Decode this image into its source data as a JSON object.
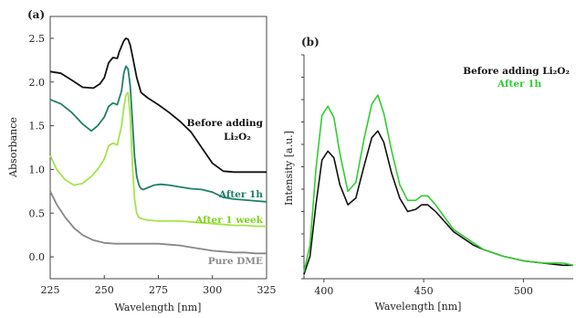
{
  "chart_data": [
    {
      "type": "line",
      "panel_label": "(a)",
      "xlabel": "Wavelength [nm]",
      "ylabel": "Absorbance",
      "xlim": [
        225,
        325
      ],
      "ylim": [
        -0.25,
        2.75
      ],
      "xticks": [
        225,
        250,
        275,
        300,
        325
      ],
      "yticks": [
        0.0,
        0.5,
        1.0,
        1.5,
        2.0,
        2.5
      ],
      "ytick_labels": [
        "0.0",
        "0.5",
        "1.0",
        "1.5",
        "2.0",
        "2.5"
      ],
      "series": [
        {
          "name": "Before adding Li₂O₂",
          "color": "#111111",
          "label_color": "#111111",
          "x": [
            225,
            230,
            235,
            240,
            245,
            248,
            250,
            252,
            254,
            256,
            257,
            259,
            260,
            261,
            262,
            263,
            265,
            267,
            270,
            275,
            280,
            285,
            290,
            295,
            300,
            305,
            310,
            315,
            320,
            325
          ],
          "y": [
            2.12,
            2.1,
            2.02,
            1.94,
            1.93,
            1.98,
            2.05,
            2.22,
            2.28,
            2.27,
            2.35,
            2.47,
            2.5,
            2.49,
            2.42,
            2.3,
            2.05,
            1.88,
            1.82,
            1.74,
            1.65,
            1.55,
            1.43,
            1.25,
            1.07,
            0.98,
            0.97,
            0.97,
            0.97,
            0.97
          ]
        },
        {
          "name": "After 1h",
          "color": "#1f7f68",
          "label_color": "#1f7f68",
          "x": [
            225,
            230,
            235,
            240,
            244,
            247,
            250,
            252,
            254,
            256,
            258,
            259,
            260,
            261,
            262,
            263,
            264,
            265,
            266,
            267,
            268,
            270,
            273,
            276,
            280,
            285,
            290,
            295,
            300,
            305,
            310,
            315,
            320,
            325
          ],
          "y": [
            1.8,
            1.75,
            1.65,
            1.52,
            1.44,
            1.5,
            1.6,
            1.72,
            1.76,
            1.74,
            1.9,
            2.1,
            2.18,
            2.15,
            1.95,
            1.55,
            1.15,
            0.92,
            0.82,
            0.78,
            0.77,
            0.79,
            0.82,
            0.83,
            0.82,
            0.8,
            0.78,
            0.77,
            0.74,
            0.68,
            0.66,
            0.65,
            0.64,
            0.63
          ]
        },
        {
          "name": "After 1 week",
          "color": "#a6e34a",
          "label_color": "#7ed321",
          "x": [
            225,
            228,
            232,
            236,
            240,
            244,
            247,
            250,
            252,
            254,
            256,
            258,
            259,
            260,
            261,
            262,
            263,
            264,
            265,
            266,
            268,
            270,
            275,
            280,
            285,
            290,
            295,
            300,
            305,
            310,
            315,
            320,
            325
          ],
          "y": [
            1.16,
            1.0,
            0.88,
            0.82,
            0.84,
            0.92,
            1.0,
            1.12,
            1.27,
            1.3,
            1.28,
            1.5,
            1.7,
            1.85,
            1.88,
            1.6,
            1.05,
            0.66,
            0.5,
            0.45,
            0.43,
            0.42,
            0.41,
            0.41,
            0.41,
            0.4,
            0.39,
            0.38,
            0.37,
            0.36,
            0.36,
            0.35,
            0.35
          ]
        },
        {
          "name": "Pure DME",
          "color": "#888888",
          "label_color": "#8a8a8a",
          "x": [
            225,
            228,
            232,
            236,
            240,
            245,
            250,
            255,
            260,
            265,
            270,
            275,
            280,
            285,
            290,
            295,
            300,
            305,
            310,
            315,
            320,
            325
          ],
          "y": [
            0.75,
            0.6,
            0.45,
            0.33,
            0.25,
            0.19,
            0.16,
            0.15,
            0.15,
            0.15,
            0.15,
            0.15,
            0.14,
            0.13,
            0.11,
            0.09,
            0.07,
            0.06,
            0.05,
            0.05,
            0.04,
            0.04
          ]
        }
      ],
      "annotations": [
        {
          "text": "Before adding",
          "color": "#111111"
        },
        {
          "text": "Li₂O₂",
          "color": "#111111"
        },
        {
          "text": "After 1h",
          "color": "#1f7f68"
        },
        {
          "text": "After 1 week",
          "color": "#7ed321"
        },
        {
          "text": "Pure DME",
          "color": "#8a8a8a"
        }
      ]
    },
    {
      "type": "line",
      "panel_label": "(b)",
      "xlabel": "Wavelength [nm]",
      "ylabel": "Intensity [a.u.]",
      "xlim": [
        390,
        525
      ],
      "ylim": [
        0,
        1
      ],
      "xticks": [
        400,
        450,
        500
      ],
      "y_tick_labels_shown": false,
      "legend": {
        "placement": "top-right",
        "entries": [
          {
            "text": "Before adding Li₂O₂",
            "color": "#111111"
          },
          {
            "text": "After 1h",
            "color": "#32cd32"
          }
        ]
      },
      "series": [
        {
          "name": "Before adding Li₂O₂",
          "color": "#111111",
          "x": [
            390,
            393,
            396,
            399,
            402,
            405,
            408,
            412,
            416,
            420,
            424,
            427,
            430,
            434,
            438,
            442,
            446,
            449,
            452,
            456,
            460,
            465,
            470,
            475,
            480,
            490,
            500,
            510,
            520,
            525
          ],
          "y": [
            0.02,
            0.1,
            0.33,
            0.53,
            0.57,
            0.54,
            0.42,
            0.33,
            0.36,
            0.5,
            0.63,
            0.66,
            0.61,
            0.47,
            0.36,
            0.3,
            0.31,
            0.33,
            0.33,
            0.3,
            0.26,
            0.21,
            0.18,
            0.15,
            0.13,
            0.1,
            0.08,
            0.07,
            0.06,
            0.06
          ]
        },
        {
          "name": "After 1h",
          "color": "#32cd32",
          "x": [
            390,
            393,
            396,
            399,
            402,
            405,
            408,
            412,
            416,
            420,
            424,
            427,
            430,
            434,
            438,
            442,
            446,
            449,
            452,
            456,
            460,
            465,
            470,
            475,
            480,
            490,
            500,
            510,
            520,
            525
          ],
          "y": [
            0.03,
            0.15,
            0.49,
            0.73,
            0.77,
            0.72,
            0.56,
            0.39,
            0.43,
            0.62,
            0.78,
            0.82,
            0.74,
            0.57,
            0.42,
            0.35,
            0.35,
            0.37,
            0.37,
            0.33,
            0.28,
            0.22,
            0.19,
            0.16,
            0.13,
            0.1,
            0.08,
            0.07,
            0.07,
            0.06
          ]
        }
      ]
    }
  ]
}
